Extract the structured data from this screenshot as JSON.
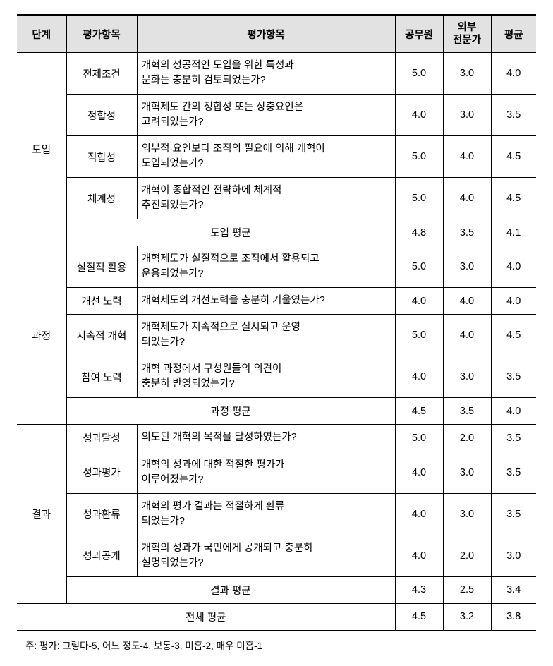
{
  "headers": {
    "stage": "단계",
    "item1": "평가항목",
    "item2": "평가항목",
    "official": "공무원",
    "expert": "외부\n전문가",
    "avg": "평균"
  },
  "stages": [
    {
      "name": "도입",
      "rows": [
        {
          "label": "전제조건",
          "question": "개혁의 성공적인 도입을 위한 특성과\n문화는 충분히 검토되었는가?",
          "v1": "5.0",
          "v2": "3.0",
          "v3": "4.0"
        },
        {
          "label": "정합성",
          "question": "개혁제도 간의 정합성 또는 상충요인은\n고려되었는가?",
          "v1": "4.0",
          "v2": "3.0",
          "v3": "3.5"
        },
        {
          "label": "적합성",
          "question": "외부적 요인보다 조직의 필요에 의해 개혁이\n도입되었는가?",
          "v1": "5.0",
          "v2": "4.0",
          "v3": "4.5"
        },
        {
          "label": "체계성",
          "question": "개혁이 종합적인 전략하에 체계적\n추진되었는가?",
          "v1": "5.0",
          "v2": "4.0",
          "v3": "4.5"
        }
      ],
      "avg": {
        "label": "도입 평균",
        "v1": "4.8",
        "v2": "3.5",
        "v3": "4.1"
      }
    },
    {
      "name": "과정",
      "rows": [
        {
          "label": "실질적 활용",
          "question": "개혁제도가 실질적으로 조직에서 활용되고\n운용되었는가?",
          "v1": "5.0",
          "v2": "3.0",
          "v3": "4.0"
        },
        {
          "label": "개선 노력",
          "question": "개혁제도의 개선노력을 충분히 기울였는가?",
          "v1": "4.0",
          "v2": "4.0",
          "v3": "4.0"
        },
        {
          "label": "지속적 개혁",
          "question": "개혁제도가 지속적으로 실시되고 운영\n되었는가?",
          "v1": "5.0",
          "v2": "4.0",
          "v3": "4.5"
        },
        {
          "label": "참여 노력",
          "question": "개혁 과정에서 구성원들의 의견이\n충분히 반영되었는가?",
          "v1": "4.0",
          "v2": "3.0",
          "v3": "3.5"
        }
      ],
      "avg": {
        "label": "과정 평균",
        "v1": "4.5",
        "v2": "3.5",
        "v3": "4.0"
      }
    },
    {
      "name": "결과",
      "rows": [
        {
          "label": "성과달성",
          "question": "의도된 개혁의 목적을 달성하였는가?",
          "v1": "5.0",
          "v2": "2.0",
          "v3": "3.5"
        },
        {
          "label": "성과평가",
          "question": "개혁의 성과에 대한 적절한 평가가\n이루어졌는가?",
          "v1": "4.0",
          "v2": "3.0",
          "v3": "3.5"
        },
        {
          "label": "성과환류",
          "question": "개혁의 평가 결과는 적절하게 환류\n되었는가?",
          "v1": "4.0",
          "v2": "3.0",
          "v3": "3.5"
        },
        {
          "label": "성과공개",
          "question": "개혁의 성과가 국민에게 공개되고 충분히\n설명되었는가?",
          "v1": "4.0",
          "v2": "2.0",
          "v3": "3.0"
        }
      ],
      "avg": {
        "label": "결과 평균",
        "v1": "4.3",
        "v2": "2.5",
        "v3": "3.4"
      }
    }
  ],
  "overall": {
    "label": "전체 평균",
    "v1": "4.5",
    "v2": "3.2",
    "v3": "3.8"
  },
  "note": "주: 평가: 그렇다-5, 어느 정도-4, 보통-3, 미흡-2, 매우 미흡-1"
}
